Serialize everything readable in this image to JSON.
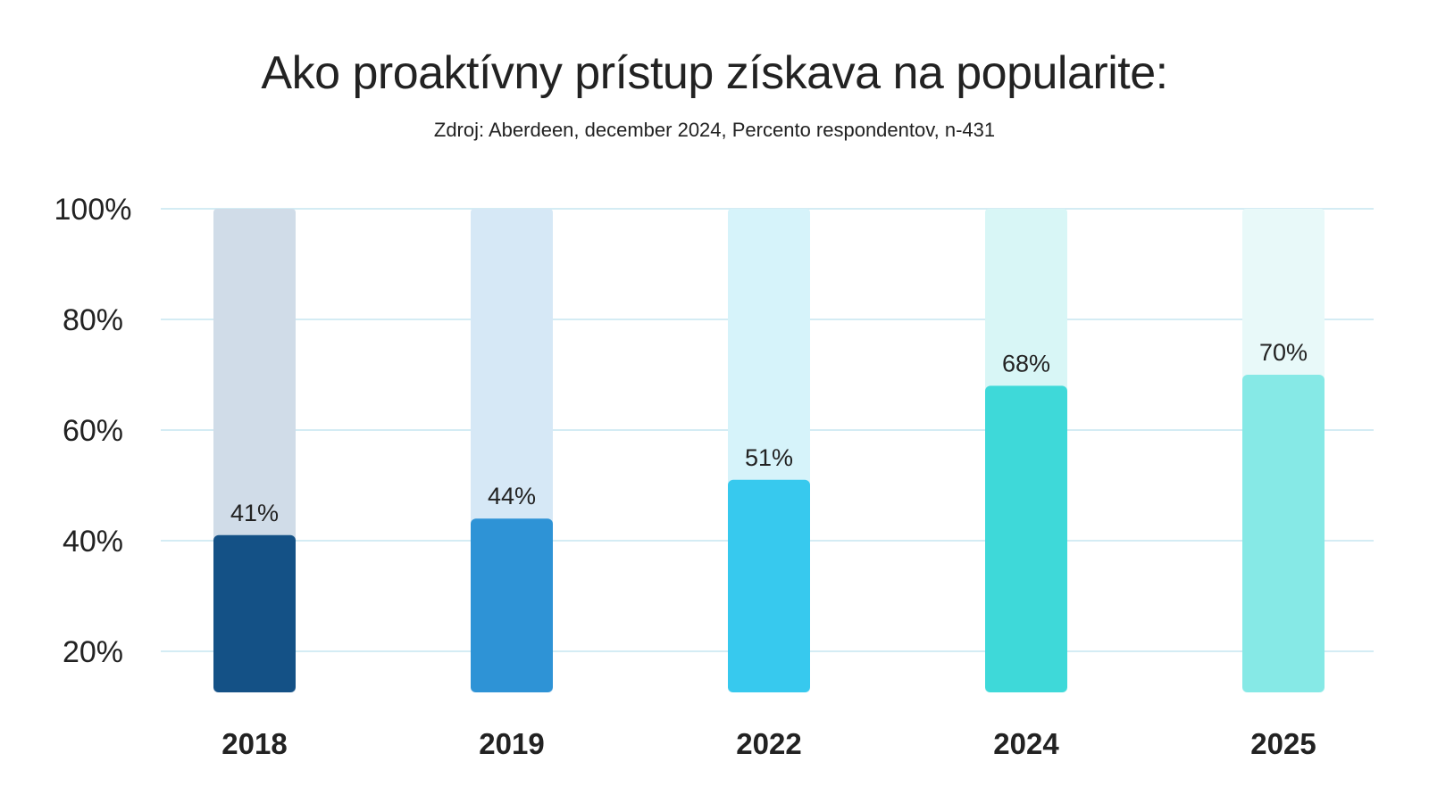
{
  "chart_data": {
    "type": "bar",
    "title": "Ako proaktívny prístup získava na popularite:",
    "subtitle": "Zdroj: Aberdeen, december 2024, Percento respondentov, n-431",
    "categories": [
      "2018",
      "2019",
      "2022",
      "2024",
      "2025"
    ],
    "values": [
      41,
      44,
      51,
      68,
      70
    ],
    "value_labels": [
      "41%",
      "44%",
      "51%",
      "68%",
      "70%"
    ],
    "y_ticks": [
      20,
      40,
      60,
      80,
      100
    ],
    "y_tick_labels": [
      "20%",
      "40%",
      "60%",
      "80%",
      "100%"
    ],
    "ylim": [
      20,
      100
    ],
    "grid": true,
    "bar_colors": [
      "#145186",
      "#2e93d6",
      "#37c9ee",
      "#3ed9d9",
      "#86e9e6"
    ],
    "track_colors": [
      "#d0dce8",
      "#d6e8f6",
      "#d6f3fa",
      "#d8f6f6",
      "#e8f9f9"
    ],
    "grid_color": "#d4ecf4"
  }
}
